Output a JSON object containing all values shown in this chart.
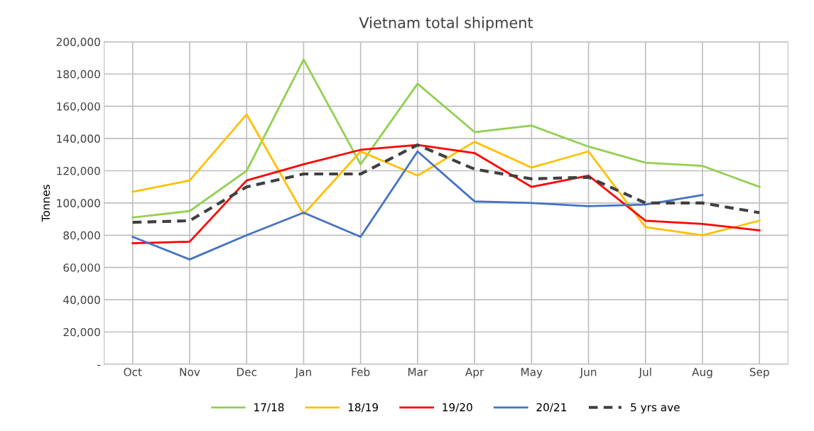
{
  "chart_data": {
    "type": "line",
    "title": "Vietnam total shipment",
    "ylabel": "Tonnes",
    "categories": [
      "Oct",
      "Nov",
      "Dec",
      "Jan",
      "Feb",
      "Mar",
      "Apr",
      "May",
      "Jun",
      "Jul",
      "Aug",
      "Sep"
    ],
    "series": [
      {
        "name": "17/18",
        "color": "#92d050",
        "values": [
          91000,
          95000,
          120000,
          189000,
          124000,
          174000,
          144000,
          148000,
          135000,
          125000,
          123000,
          110000
        ]
      },
      {
        "name": "18/19",
        "color": "#ffc000",
        "values": [
          107000,
          114000,
          155000,
          93000,
          132000,
          117000,
          138000,
          122000,
          132000,
          85000,
          80000,
          89000
        ]
      },
      {
        "name": "19/20",
        "color": "#ff0000",
        "values": [
          75000,
          76000,
          114000,
          124000,
          133000,
          136000,
          131000,
          110000,
          117000,
          89000,
          87000,
          83000
        ]
      },
      {
        "name": "20/21",
        "color": "#4472c4",
        "values": [
          79000,
          65000,
          80000,
          94000,
          79000,
          132000,
          101000,
          100000,
          98000,
          99000,
          105000,
          null
        ]
      },
      {
        "name": "5 yrs ave",
        "color": "#404040",
        "line_style": "dashed",
        "values": [
          88000,
          89000,
          110000,
          118000,
          118000,
          136000,
          121000,
          115000,
          116000,
          100000,
          100000,
          94000
        ]
      }
    ],
    "ylim": [
      0,
      200000
    ],
    "yticks": [
      {
        "value": 0,
        "label": "-"
      },
      {
        "value": 20000,
        "label": "20,000"
      },
      {
        "value": 40000,
        "label": "40,000"
      },
      {
        "value": 60000,
        "label": "60,000"
      },
      {
        "value": 80000,
        "label": "80,000"
      },
      {
        "value": 100000,
        "label": "100,000"
      },
      {
        "value": 120000,
        "label": "120,000"
      },
      {
        "value": 140000,
        "label": "140,000"
      },
      {
        "value": 160000,
        "label": "160,000"
      },
      {
        "value": 180000,
        "label": "180,000"
      },
      {
        "value": 200000,
        "label": "200,000"
      }
    ],
    "grid": true,
    "legend": "bottom",
    "marker": "none"
  }
}
